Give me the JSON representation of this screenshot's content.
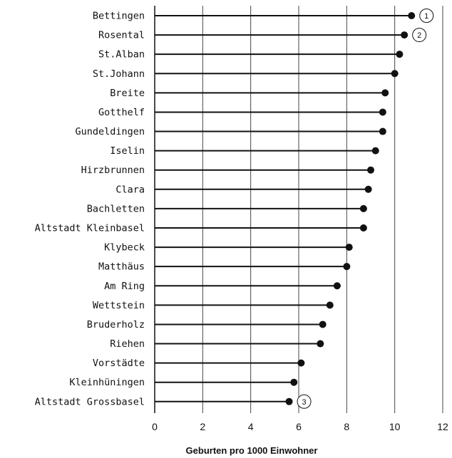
{
  "chart_data": {
    "type": "lollipop",
    "xlabel": "Geburten pro 1000 Einwohner",
    "xlim": [
      0,
      12
    ],
    "xticks": [
      0,
      2,
      4,
      6,
      8,
      10,
      12
    ],
    "grid": "vertical",
    "categories": [
      "Bettingen",
      "Rosental",
      "St.Alban",
      "St.Johann",
      "Breite",
      "Gotthelf",
      "Gundeldingen",
      "Iselin",
      "Hirzbrunnen",
      "Clara",
      "Bachletten",
      "Altstadt Kleinbasel",
      "Klybeck",
      "Matthäus",
      "Am Ring",
      "Wettstein",
      "Bruderholz",
      "Riehen",
      "Vorstädte",
      "Kleinhüningen",
      "Altstadt Grossbasel"
    ],
    "values": [
      10.7,
      10.4,
      10.2,
      10.0,
      9.6,
      9.5,
      9.5,
      9.2,
      9.0,
      8.9,
      8.7,
      8.7,
      8.1,
      8.0,
      7.6,
      7.3,
      7.0,
      6.9,
      6.1,
      5.8,
      5.6
    ],
    "annotations": [
      {
        "category": "Bettingen",
        "label": "1"
      },
      {
        "category": "Rosental",
        "label": "2"
      },
      {
        "category": "Altstadt Grossbasel",
        "label": "3"
      }
    ]
  }
}
